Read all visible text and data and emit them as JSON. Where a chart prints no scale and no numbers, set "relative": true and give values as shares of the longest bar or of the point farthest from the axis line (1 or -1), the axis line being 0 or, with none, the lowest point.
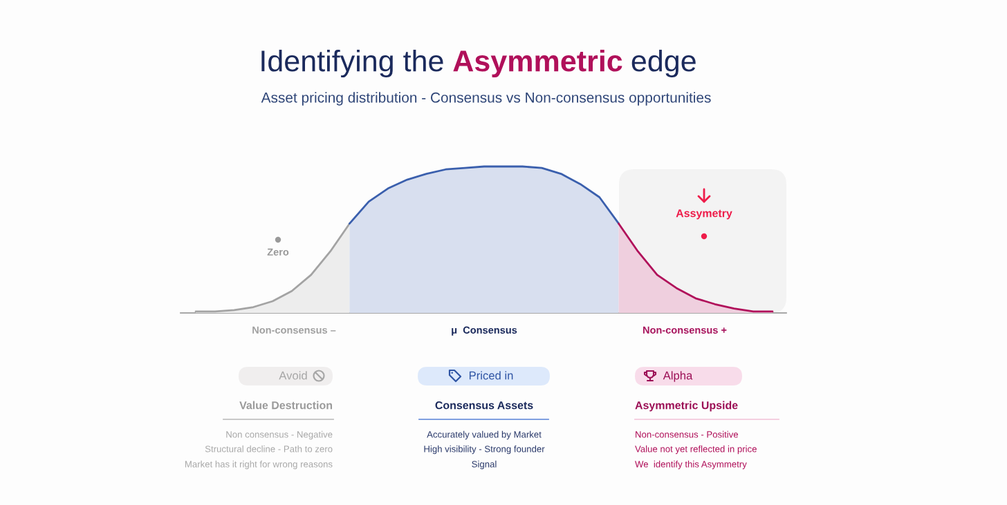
{
  "chart_data": {
    "type": "area",
    "relative": true,
    "title": "Identifying the Asymmetric edge",
    "subtitle": "Asset pricing distribution - Consensus vs Non-consensus opportunities",
    "categories": [
      null,
      null,
      null,
      null,
      null,
      null,
      null,
      null,
      null,
      null,
      null,
      null,
      null,
      null,
      null,
      null,
      null,
      null,
      null,
      null,
      null,
      null,
      null,
      null,
      null,
      null,
      null,
      null,
      null,
      null,
      null
    ],
    "series": [
      {
        "color": "#a3a3a3",
        "values": [
          0.01,
          0.01,
          0.02,
          0.04,
          0.08,
          0.15,
          0.26,
          0.42,
          0.61,
          null,
          null,
          null,
          null,
          null,
          null,
          null,
          null,
          null,
          null,
          null,
          null,
          null,
          null,
          null,
          null,
          null,
          null,
          null,
          null,
          null,
          null
        ]
      },
      {
        "color": "#3a5fad",
        "values": [
          null,
          null,
          null,
          null,
          null,
          null,
          null,
          null,
          0.61,
          0.76,
          0.85,
          0.91,
          0.95,
          0.98,
          0.99,
          1,
          1,
          1,
          0.99,
          0.95,
          0.88,
          0.79,
          0.61,
          null,
          null,
          null,
          null,
          null,
          null,
          null,
          null
        ]
      },
      {
        "color": "#b0105a",
        "values": [
          null,
          null,
          null,
          null,
          null,
          null,
          null,
          null,
          null,
          null,
          null,
          null,
          null,
          null,
          null,
          null,
          null,
          null,
          null,
          null,
          null,
          null,
          0.61,
          0.42,
          0.26,
          0.17,
          0.1,
          0.06,
          0.03,
          0.01,
          0.01
        ]
      }
    ],
    "annotations": [
      "Zero",
      "Assymetry",
      "Non-consensus –",
      "μ  Consensus",
      "Non-consensus +",
      "Avoid",
      "Priced in",
      "Alpha",
      "Value Destruction",
      "Consensus Assets",
      "Asymmetric Upside",
      "Non consensus - Negative",
      "Structural decline - Path to zero",
      "Market has it right for wrong reasons",
      "Accurately valued by Market",
      "High visibility - Strong founder",
      "Signal",
      "Non-consensus - Positive",
      "Value not yet reflected in price",
      "We  identify this Asymmetry"
    ]
  }
}
